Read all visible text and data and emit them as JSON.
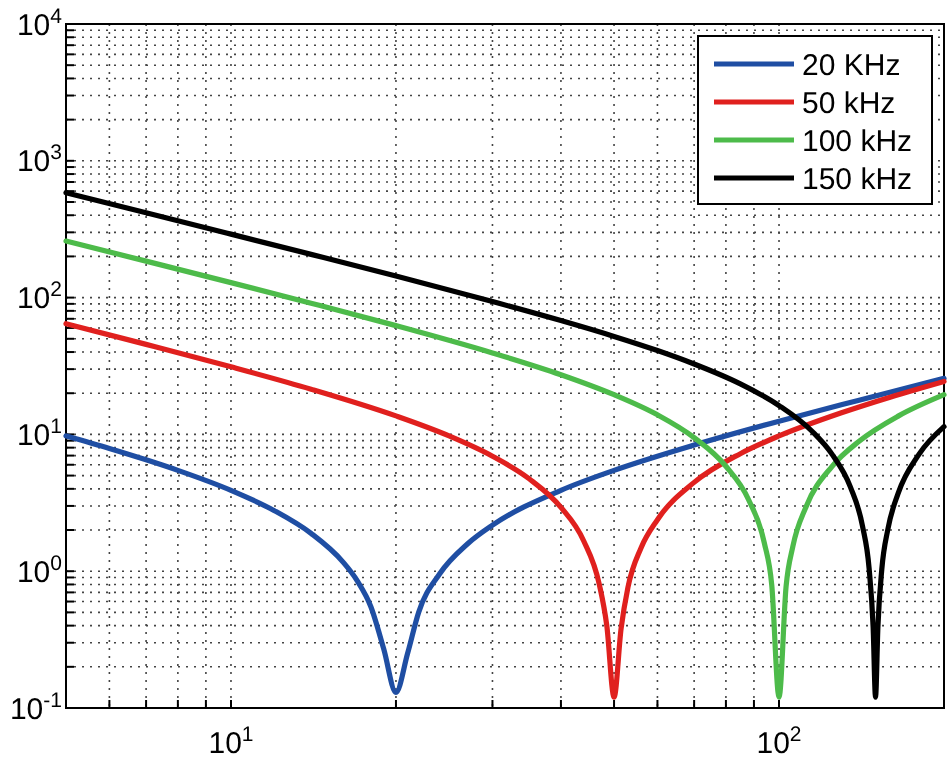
{
  "chart_data": {
    "type": "line",
    "log": "xy",
    "grid": true,
    "legend": "top right",
    "line_style": "solid",
    "marker": "none",
    "xlim": [
      5,
      200
    ],
    "ylim": [
      0.1,
      10000
    ],
    "xticks": [
      {
        "value": 5,
        "label": null
      },
      {
        "value": 6,
        "label": null
      },
      {
        "value": 7,
        "label": null
      },
      {
        "value": 8,
        "label": null
      },
      {
        "value": 9,
        "label": null
      },
      {
        "value": 10,
        "label": "10$^{1}$"
      },
      {
        "value": 20,
        "label": null
      },
      {
        "value": 30,
        "label": null
      },
      {
        "value": 40,
        "label": null
      },
      {
        "value": 50,
        "label": null
      },
      {
        "value": 60,
        "label": null
      },
      {
        "value": 70,
        "label": null
      },
      {
        "value": 80,
        "label": null
      },
      {
        "value": 90,
        "label": null
      },
      {
        "value": 100,
        "label": "10$^{2}$"
      },
      {
        "value": 200,
        "label": null
      }
    ],
    "yticks": [
      {
        "value": 0.1,
        "label": "10$^{-1}$"
      },
      {
        "value": 0.2,
        "label": null
      },
      {
        "value": 0.3,
        "label": null
      },
      {
        "value": 0.4,
        "label": null
      },
      {
        "value": 0.5,
        "label": null
      },
      {
        "value": 0.6,
        "label": null
      },
      {
        "value": 0.7,
        "label": null
      },
      {
        "value": 0.8,
        "label": null
      },
      {
        "value": 0.9,
        "label": null
      },
      {
        "value": 1,
        "label": "10$^{0}$"
      },
      {
        "value": 2,
        "label": null
      },
      {
        "value": 3,
        "label": null
      },
      {
        "value": 4,
        "label": null
      },
      {
        "value": 5,
        "label": null
      },
      {
        "value": 6,
        "label": null
      },
      {
        "value": 7,
        "label": null
      },
      {
        "value": 8,
        "label": null
      },
      {
        "value": 9,
        "label": null
      },
      {
        "value": 10,
        "label": "10$^{1}$"
      },
      {
        "value": 20,
        "label": null
      },
      {
        "value": 30,
        "label": null
      },
      {
        "value": 40,
        "label": null
      },
      {
        "value": 50,
        "label": null
      },
      {
        "value": 60,
        "label": null
      },
      {
        "value": 70,
        "label": null
      },
      {
        "value": 80,
        "label": null
      },
      {
        "value": 90,
        "label": null
      },
      {
        "value": 100,
        "label": "10$^{2}$"
      },
      {
        "value": 200,
        "label": null
      },
      {
        "value": 300,
        "label": null
      },
      {
        "value": 400,
        "label": null
      },
      {
        "value": 500,
        "label": null
      },
      {
        "value": 600,
        "label": null
      },
      {
        "value": 700,
        "label": null
      },
      {
        "value": 800,
        "label": null
      },
      {
        "value": 900,
        "label": null
      },
      {
        "value": 1000,
        "label": "10$^{3}$"
      },
      {
        "value": 2000,
        "label": null
      },
      {
        "value": 3000,
        "label": null
      },
      {
        "value": 4000,
        "label": null
      },
      {
        "value": 5000,
        "label": null
      },
      {
        "value": 6000,
        "label": null
      },
      {
        "value": 7000,
        "label": null
      },
      {
        "value": 8000,
        "label": null
      },
      {
        "value": 9000,
        "label": null
      },
      {
        "value": 10000,
        "label": "10$^{4}$"
      }
    ],
    "series": [
      {
        "name": "20 KHz",
        "color": "#1f4ea3",
        "x": [
          5,
          6,
          7,
          8,
          10,
          12,
          14,
          16,
          17,
          18,
          19,
          20,
          21,
          22,
          24,
          27,
          30,
          40,
          50,
          70,
          100,
          140,
          200
        ],
        "values": [
          9.75,
          7.89,
          6.52,
          5.46,
          3.9,
          2.77,
          1.89,
          1.17,
          0.85,
          0.55,
          0.27,
          0.13,
          0.25,
          0.5,
          0.95,
          1.58,
          2.17,
          3.9,
          5.46,
          8.36,
          12.5,
          17.8,
          25.7
        ]
      },
      {
        "name": "50 kHz",
        "color": "#e0201e",
        "x": [
          5,
          7,
          10,
          14,
          20,
          25,
          30,
          35,
          40,
          44,
          47,
          48.5,
          50,
          51.5,
          53,
          56,
          60,
          70,
          85,
          100,
          130,
          160,
          200
        ],
        "values": [
          64.4,
          45.5,
          31.2,
          21.4,
          13.65,
          9.75,
          6.93,
          4.74,
          2.93,
          1.67,
          0.8,
          0.4,
          0.12,
          0.38,
          0.76,
          1.48,
          2.38,
          4.46,
          7.23,
          9.75,
          14.4,
          18.8,
          24.4
        ]
      },
      {
        "name": "100 kHz",
        "color": "#4dbb4a",
        "x": [
          5,
          7,
          10,
          14,
          20,
          30,
          40,
          50,
          60,
          70,
          80,
          88,
          94,
          97,
          100,
          103,
          106,
          112,
          125,
          140,
          165,
          200
        ],
        "values": [
          259,
          184.8,
          128.7,
          91,
          62.4,
          39.4,
          27.3,
          19.5,
          13.9,
          9.47,
          5.85,
          3.33,
          1.61,
          0.79,
          0.12,
          0.77,
          1.52,
          2.95,
          5.85,
          8.91,
          13.6,
          19.5
        ]
      },
      {
        "name": "150 kHz",
        "color": "#000000",
        "x": [
          5,
          7,
          10,
          14,
          20,
          30,
          40,
          50,
          60,
          70,
          85,
          100,
          115,
          125,
          135,
          142,
          146,
          148.5,
          150,
          151.5,
          154,
          158,
          165,
          180,
          200
        ],
        "values": [
          584,
          417,
          291,
          207,
          143.7,
          93.6,
          67.9,
          52,
          41,
          32.7,
          23.4,
          16.25,
          10.5,
          7.15,
          4.12,
          2.14,
          1.05,
          0.39,
          0.12,
          0.39,
          1.03,
          2.03,
          3.72,
          7.15,
          11.4
        ]
      }
    ]
  }
}
